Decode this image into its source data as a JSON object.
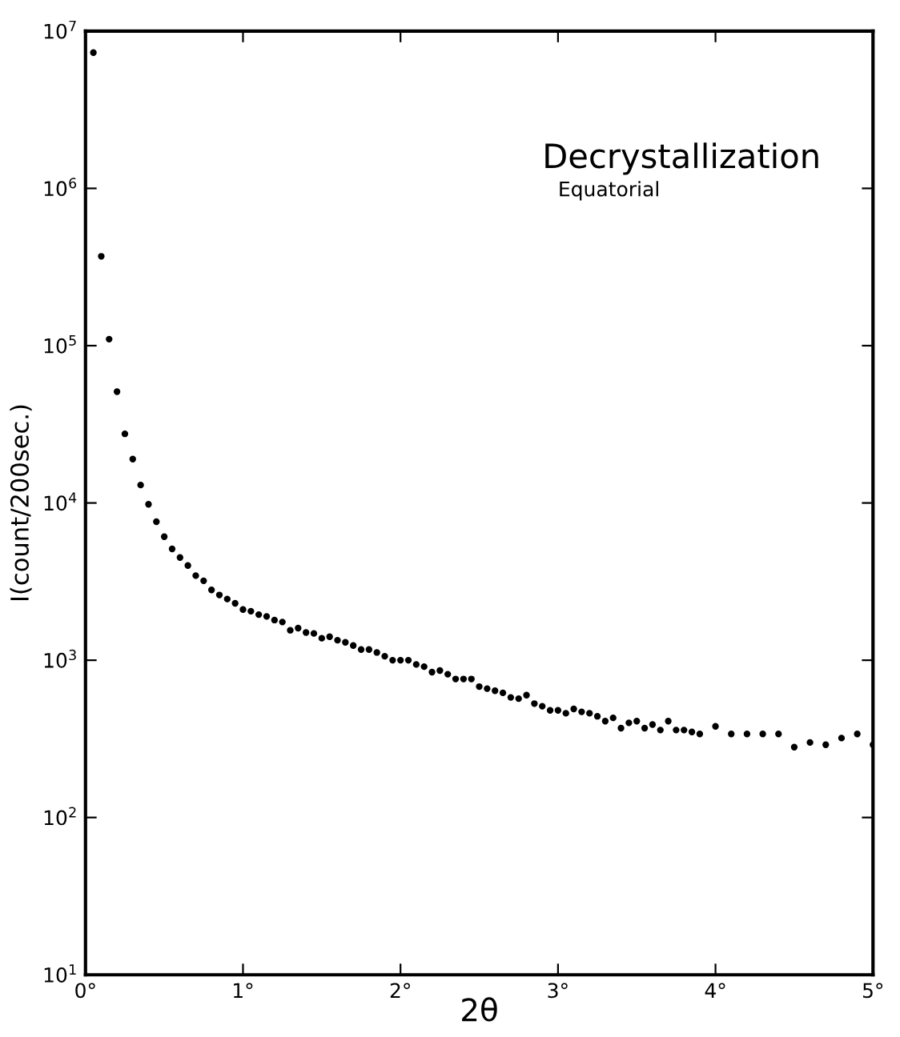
{
  "chart_data": {
    "type": "scatter",
    "xlabel": "2θ",
    "ylabel": "I(count/200sec.)",
    "annotations": [
      "Decrystallization",
      "Equatorial"
    ],
    "log": "y",
    "marker": "circle",
    "grid": false,
    "legend": false,
    "xlim": [
      0,
      5
    ],
    "ylim": [
      10,
      10000000
    ],
    "xticks": [
      {
        "value": 0,
        "label": "0°"
      },
      {
        "value": 1,
        "label": "1°"
      },
      {
        "value": 2,
        "label": "2°"
      },
      {
        "value": 3,
        "label": "3°"
      },
      {
        "value": 4,
        "label": "4°"
      },
      {
        "value": 5,
        "label": "5°"
      }
    ],
    "yticks": [
      {
        "value": 10,
        "label": "10$^{1}$"
      },
      {
        "value": 100,
        "label": "10$^{2}$"
      },
      {
        "value": 1000,
        "label": "10$^{3}$"
      },
      {
        "value": 10000,
        "label": "10$^{4}$"
      },
      {
        "value": 100000,
        "label": "10$^{5}$"
      },
      {
        "value": 1000000,
        "label": "10$^{6}$"
      },
      {
        "value": 10000000,
        "label": "10$^{7}$"
      }
    ],
    "series": [
      {
        "color": "#000000",
        "x": [
          0.05,
          0.1,
          0.15,
          0.2,
          0.25,
          0.3,
          0.35,
          0.4,
          0.45,
          0.5,
          0.55,
          0.6,
          0.65,
          0.7,
          0.75,
          0.8,
          0.85,
          0.9,
          0.95,
          1.0,
          1.05,
          1.1,
          1.15,
          1.2,
          1.25,
          1.3,
          1.35,
          1.4,
          1.45,
          1.5,
          1.55,
          1.6,
          1.65,
          1.7,
          1.75,
          1.8,
          1.85,
          1.9,
          1.95,
          2.0,
          2.05,
          2.1,
          2.15,
          2.2,
          2.25,
          2.3,
          2.35,
          2.4,
          2.45,
          2.5,
          2.55,
          2.6,
          2.65,
          2.7,
          2.75,
          2.8,
          2.85,
          2.9,
          2.95,
          3.0,
          3.05,
          3.1,
          3.15,
          3.2,
          3.25,
          3.3,
          3.35,
          3.4,
          3.45,
          3.5,
          3.55,
          3.6,
          3.65,
          3.7,
          3.75,
          3.8,
          3.85,
          3.9,
          4.0,
          4.1,
          4.2,
          4.3,
          4.4,
          4.5,
          4.6,
          4.7,
          4.8,
          4.9,
          5.0
        ],
        "values": [
          7300000,
          370000,
          110000,
          51000,
          27500,
          19000,
          13000,
          9800,
          7600,
          6100,
          5100,
          4500,
          4000,
          3450,
          3200,
          2800,
          2600,
          2450,
          2300,
          2100,
          2050,
          1950,
          1900,
          1800,
          1750,
          1550,
          1600,
          1500,
          1480,
          1380,
          1410,
          1340,
          1300,
          1240,
          1170,
          1170,
          1120,
          1060,
          1000,
          1000,
          1000,
          940,
          910,
          840,
          860,
          815,
          760,
          760,
          760,
          680,
          660,
          640,
          620,
          580,
          570,
          600,
          530,
          510,
          480,
          480,
          460,
          490,
          470,
          460,
          440,
          410,
          430,
          370,
          400,
          410,
          370,
          390,
          360,
          410,
          360,
          360,
          350,
          340,
          380,
          340,
          340,
          340,
          340,
          280,
          300,
          290,
          320,
          340,
          290
        ]
      }
    ]
  }
}
